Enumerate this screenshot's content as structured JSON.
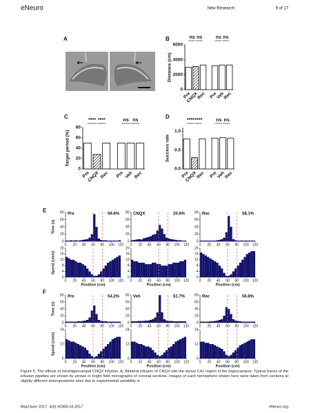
{
  "header": {
    "journal": "eNeuro",
    "section": "New Research",
    "page": "9 of 17"
  },
  "panel_a": {
    "label": "A"
  },
  "bar_panels": [
    {
      "type": "bar",
      "label": "B",
      "ylabel": "Distance (cm)",
      "categories": [
        "Pre",
        "CNQX",
        "Rec",
        "Pre",
        "Veh",
        "Rec"
      ],
      "values": [
        3000,
        3100,
        3300,
        3200,
        3300,
        3300
      ],
      "hatched": [
        false,
        true,
        false,
        false,
        false,
        false
      ],
      "ylim": [
        0,
        6000
      ],
      "yticks": [
        0,
        2000,
        4000,
        6000
      ],
      "annotations": [
        "ns",
        "ns",
        "ns",
        "ns"
      ]
    },
    {
      "type": "bar",
      "label": "C",
      "ylabel": "Target period (%)",
      "categories": [
        "Pre",
        "CNQX",
        "Rec",
        "Pre",
        "Veh",
        "Rec"
      ],
      "values": [
        50,
        28,
        50,
        50,
        50,
        50
      ],
      "hatched": [
        false,
        true,
        false,
        false,
        false,
        false
      ],
      "ylim": [
        0,
        80
      ],
      "yticks": [
        0,
        20,
        40,
        60,
        80
      ],
      "annotations": [
        "****",
        "****",
        "ns",
        "ns"
      ]
    },
    {
      "type": "bar",
      "label": "D",
      "ylabel": "Success rate",
      "categories": [
        "Pre",
        "CNQX",
        "Rec",
        "Pre",
        "Veh",
        "Rec"
      ],
      "values": [
        0.8,
        0.3,
        0.8,
        0.82,
        0.83,
        0.82
      ],
      "hatched": [
        false,
        true,
        false,
        false,
        false,
        false
      ],
      "ylim": [
        0,
        1.1
      ],
      "yticks": [
        {
          "value": 0,
          "label": "0.0"
        },
        {
          "value": 0.5,
          "label": "0.5"
        },
        {
          "value": 1,
          "label": "1.0"
        }
      ],
      "annotations": [
        "****",
        "****",
        "ns",
        "ns"
      ]
    }
  ],
  "histograms": {
    "bins": [
      0,
      5,
      10,
      15,
      20,
      25,
      30,
      35,
      40,
      45,
      50,
      55,
      60,
      65,
      70,
      75,
      80,
      85,
      90,
      95,
      100,
      105,
      110,
      115,
      120
    ],
    "markers": [
      60,
      80
    ],
    "xlim": [
      0,
      120
    ],
    "xticks": [
      0,
      20,
      40,
      60,
      80,
      100,
      120
    ],
    "xlabel": "Position (cm)",
    "color": "#14146b",
    "marker_color": "#e0707a",
    "rows": [
      {
        "label": "E",
        "time_ylabel": "Time (s)",
        "speed_ylabel": "Speed (cm/s)",
        "time_ylim": [
          0,
          80
        ],
        "time_yticks": [
          0,
          20,
          40,
          60,
          80
        ],
        "speed_ylim": [
          0,
          20
        ],
        "speed_yticks": [
          0,
          4,
          8,
          12,
          16,
          20
        ],
        "columns": [
          {
            "title": "Pre",
            "percent": "59.6%",
            "time": [
              2,
              2,
              3,
              2,
              3,
              2,
              3,
              4,
              5,
              6,
              10,
              20,
              75,
              40,
              8,
              4,
              3,
              3,
              2,
              2,
              2,
              2,
              2,
              3
            ],
            "speed": [
              14,
              13,
              12,
              12,
              11,
              10,
              10,
              9,
              8,
              6,
              4,
              2,
              1,
              1,
              2,
              4,
              6,
              8,
              10,
              11,
              12,
              13,
              14,
              15
            ]
          },
          {
            "title": "CNQX",
            "percent": "20.6%",
            "time": [
              3,
              4,
              5,
              6,
              5,
              8,
              10,
              12,
              14,
              18,
              20,
              30,
              45,
              35,
              20,
              10,
              8,
              6,
              5,
              4,
              3,
              3,
              2,
              2
            ],
            "speed": [
              12,
              11,
              11,
              10,
              10,
              10,
              9,
              9,
              9,
              10,
              10,
              9,
              9,
              8,
              8,
              8,
              9,
              9,
              10,
              10,
              10,
              11,
              11,
              12
            ]
          },
          {
            "title": "Rec",
            "percent": "58.1%",
            "time": [
              2,
              2,
              2,
              2,
              2,
              2,
              2,
              3,
              4,
              6,
              10,
              25,
              70,
              40,
              6,
              3,
              2,
              2,
              2,
              2,
              2,
              2,
              2,
              2
            ],
            "speed": [
              17,
              16,
              15,
              14,
              13,
              12,
              11,
              10,
              8,
              6,
              3,
              1,
              1,
              2,
              4,
              6,
              8,
              10,
              12,
              14,
              16,
              17,
              18,
              18
            ]
          }
        ]
      },
      {
        "label": "F",
        "time_ylabel": "Time (s)",
        "speed_ylabel": "Speed (cm/s)",
        "time_ylim": [
          0,
          80
        ],
        "time_yticks": [
          0,
          20,
          40,
          60,
          80
        ],
        "speed_ylim": [
          0,
          24
        ],
        "speed_yticks": [
          0,
          12,
          24
        ],
        "columns": [
          {
            "title": "Pre",
            "percent": "54.2%",
            "time": [
              3,
              3,
              3,
              3,
              3,
              4,
              4,
              5,
              6,
              8,
              15,
              35,
              50,
              25,
              8,
              5,
              4,
              4,
              3,
              3,
              3,
              3,
              3,
              3
            ],
            "speed": [
              16,
              15,
              14,
              14,
              13,
              12,
              11,
              10,
              9,
              7,
              4,
              2,
              1,
              2,
              4,
              6,
              8,
              10,
              12,
              14,
              16,
              17,
              18,
              18
            ]
          },
          {
            "title": "Veh",
            "percent": "51.7%",
            "time": [
              4,
              4,
              4,
              5,
              5,
              5,
              6,
              6,
              8,
              10,
              15,
              30,
              80,
              30,
              10,
              6,
              5,
              5,
              4,
              4,
              4,
              4,
              4,
              4
            ],
            "speed": [
              14,
              14,
              13,
              12,
              12,
              11,
              10,
              10,
              9,
              7,
              5,
              3,
              2,
              3,
              5,
              7,
              9,
              10,
              12,
              14,
              15,
              16,
              17,
              18
            ]
          },
          {
            "title": "Rec",
            "percent": "56.8%",
            "time": [
              3,
              3,
              3,
              3,
              4,
              4,
              5,
              6,
              8,
              10,
              20,
              45,
              40,
              25,
              10,
              6,
              5,
              4,
              3,
              3,
              3,
              3,
              3,
              3
            ],
            "speed": [
              14,
              14,
              13,
              13,
              12,
              12,
              11,
              10,
              9,
              8,
              6,
              3,
              2,
              3,
              5,
              7,
              9,
              11,
              12,
              13,
              14,
              15,
              16,
              16
            ]
          }
        ]
      }
    ]
  },
  "caption": "Figure 5. The effects of intrahippocampal CNQX infusion. A, Bilateral infusion of CNQX into the dorsal CA1 region of the hippocampus. Typical traces of the infusion pipettes are shown by arrows in bright field micrographs of coronal sections. Images of each hemisphere shown here were taken from sections at slightly different anteroposterior axes due to experimental variability in",
  "footer": {
    "left": "May/June 2017, 4(3) e0369-16.2017",
    "right": "eNeuro.org"
  }
}
